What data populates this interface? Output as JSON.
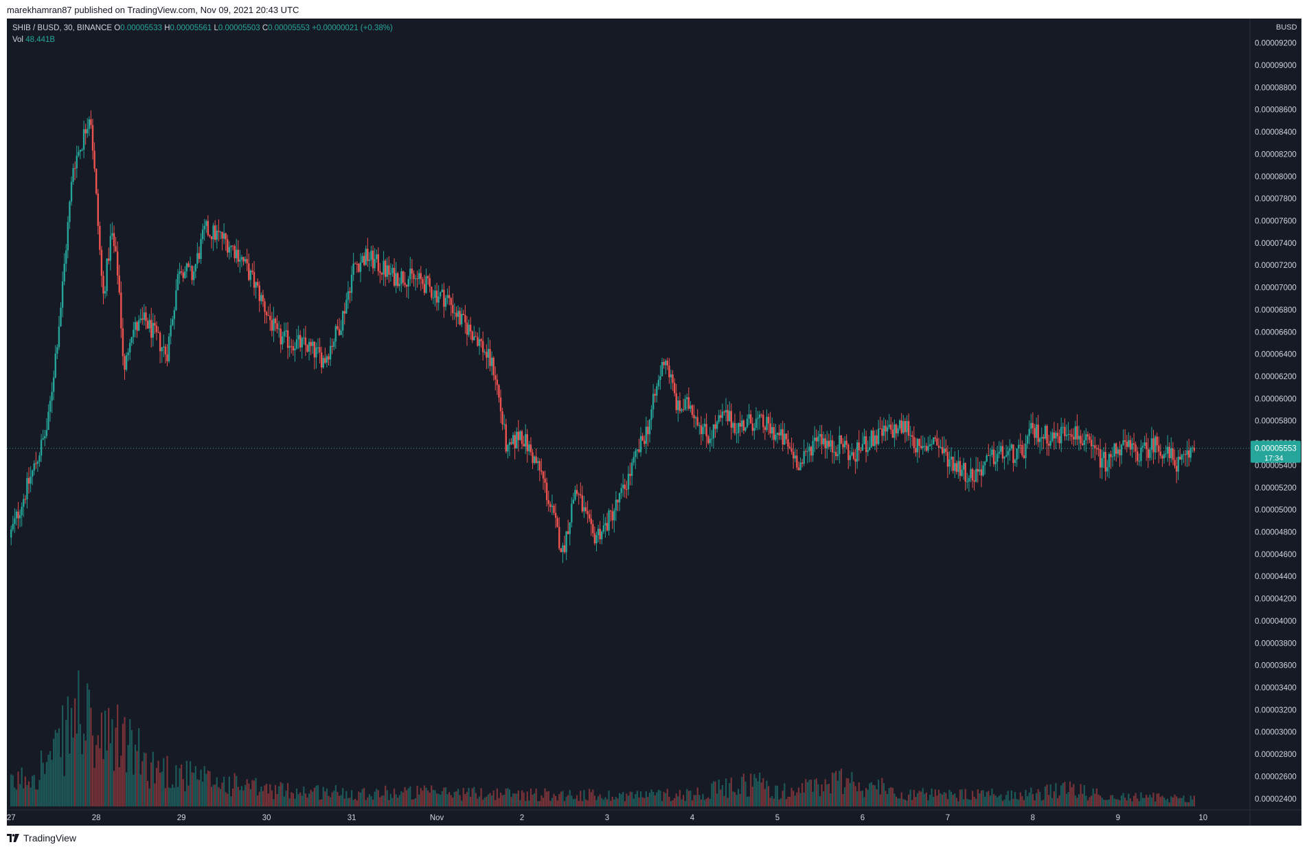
{
  "caption": "marekhamran87 published on TradingView.com, Nov 09, 2021 20:43 UTC",
  "legend": {
    "symbol": "SHIB / BUSD, 30, BINANCE",
    "o_label": "O",
    "o_value": "0.00005533",
    "h_label": "H",
    "h_value": "0.00005561",
    "l_label": "L",
    "l_value": "0.00005503",
    "c_label": "C",
    "c_value": "0.00005553",
    "change": "+0.00000021 (+0.38%)",
    "vol_label": "Vol",
    "vol_value": "48.441B"
  },
  "footer": {
    "brand": "TradingView",
    "logo_icon": "tradingview-logo-icon"
  },
  "colors": {
    "up": "#26a69a",
    "down": "#ef5350",
    "background": "#161a25",
    "axis_text": "#d1d4dc",
    "price_tag": "#26a69a"
  },
  "chart_data": {
    "type": "candlestick",
    "currency": "BUSD",
    "current_price": "0.00005553",
    "countdown": "17:34",
    "ylim": [
      2.3e-05,
      9.42e-05
    ],
    "y_ticks": [
      "0.00009200",
      "0.00009000",
      "0.00008800",
      "0.00008600",
      "0.00008400",
      "0.00008200",
      "0.00008000",
      "0.00007800",
      "0.00007600",
      "0.00007400",
      "0.00007200",
      "0.00007000",
      "0.00006800",
      "0.00006600",
      "0.00006400",
      "0.00006200",
      "0.00006000",
      "0.00005800",
      "0.00005600",
      "0.00005400",
      "0.00005200",
      "0.00005000",
      "0.00004800",
      "0.00004600",
      "0.00004400",
      "0.00004200",
      "0.00004000",
      "0.00003800",
      "0.00003600",
      "0.00003400",
      "0.00003200",
      "0.00003000",
      "0.00002800",
      "0.00002600",
      "0.00002400"
    ],
    "x_ticks": [
      "27",
      "28",
      "29",
      "30",
      "31",
      "Nov",
      "2",
      "3",
      "4",
      "5",
      "6",
      "7",
      "8",
      "9",
      "10"
    ],
    "x_tick_days": [
      0,
      1,
      2,
      3,
      4,
      5,
      6,
      7,
      8,
      9,
      10,
      11,
      12,
      13,
      14
    ],
    "x_range_days": [
      -0.05,
      14.55
    ],
    "price_path": {
      "day": [
        0.0,
        0.3,
        0.45,
        0.6,
        0.75,
        0.85,
        0.95,
        1.1,
        1.2,
        1.28,
        1.35,
        1.42,
        1.6,
        1.85,
        2.0,
        2.15,
        2.3,
        2.5,
        2.7,
        2.9,
        3.15,
        3.5,
        3.7,
        3.9,
        4.05,
        4.2,
        4.5,
        4.65,
        4.85,
        5.0,
        5.15,
        5.3,
        5.5,
        5.7,
        5.85,
        6.0,
        6.25,
        6.5,
        6.65,
        6.85,
        7.0,
        7.2,
        7.5,
        7.7,
        7.85,
        8.0,
        8.2,
        8.4,
        8.55,
        8.75,
        8.9,
        9.1,
        9.3,
        9.5,
        9.65,
        9.8,
        9.9,
        10.0,
        10.3,
        10.55,
        10.7,
        10.85,
        11.0,
        11.3,
        11.6,
        11.9,
        12.0,
        12.3,
        12.45,
        12.7,
        12.9,
        13.0,
        13.15,
        13.3,
        13.45,
        13.6,
        13.75,
        13.9
      ],
      "price": [
        4.75e-05,
        5.4e-05,
        5.75e-05,
        6.8e-05,
        8.1e-05,
        8.3e-05,
        8.6e-05,
        6.9e-05,
        7.5e-05,
        7.1e-05,
        6.2e-05,
        6.6e-05,
        6.7e-05,
        6.4e-05,
        7.2e-05,
        7.1e-05,
        7.52e-05,
        7.45e-05,
        7.3e-05,
        7e-05,
        6.55e-05,
        6.47e-05,
        6.35e-05,
        6.7e-05,
        7.2e-05,
        7.28e-05,
        7.1e-05,
        7.1e-05,
        7.05e-05,
        6.95e-05,
        6.9e-05,
        6.7e-05,
        6.55e-05,
        6.25e-05,
        5.5e-05,
        5.7e-05,
        5.32e-05,
        4.62e-05,
        5.2e-05,
        4.75e-05,
        4.85e-05,
        5.15e-05,
        5.75e-05,
        6.4e-05,
        5.9e-05,
        5.95e-05,
        5.65e-05,
        5.85e-05,
        5.75e-05,
        5.8e-05,
        5.75e-05,
        5.62e-05,
        5.4e-05,
        5.7e-05,
        5.55e-05,
        5.6e-05,
        5.45e-05,
        5.57e-05,
        5.7e-05,
        5.75e-05,
        5.5e-05,
        5.65e-05,
        5.48e-05,
        5.3e-05,
        5.5e-05,
        5.5e-05,
        5.7e-05,
        5.65e-05,
        5.75e-05,
        5.55e-05,
        5.4e-05,
        5.57e-05,
        5.55e-05,
        5.5e-05,
        5.6e-05,
        5.5e-05,
        5.4e-05,
        5.55e-05
      ]
    },
    "volume_profile": {
      "day": [
        0.0,
        0.5,
        0.8,
        1.0,
        1.3,
        1.6,
        2.2,
        3.0,
        4.0,
        5.0,
        6.0,
        7.0,
        8.0,
        8.8,
        9.0,
        9.5,
        9.9,
        10.0,
        10.2,
        10.5,
        11.0,
        12.0,
        12.4,
        13.0,
        13.9
      ],
      "level": [
        0.15,
        0.35,
        0.7,
        0.45,
        0.5,
        0.3,
        0.2,
        0.12,
        0.1,
        0.1,
        0.09,
        0.08,
        0.09,
        0.18,
        0.1,
        0.15,
        0.22,
        0.1,
        0.15,
        0.09,
        0.08,
        0.09,
        0.12,
        0.07,
        0.06
      ]
    }
  }
}
